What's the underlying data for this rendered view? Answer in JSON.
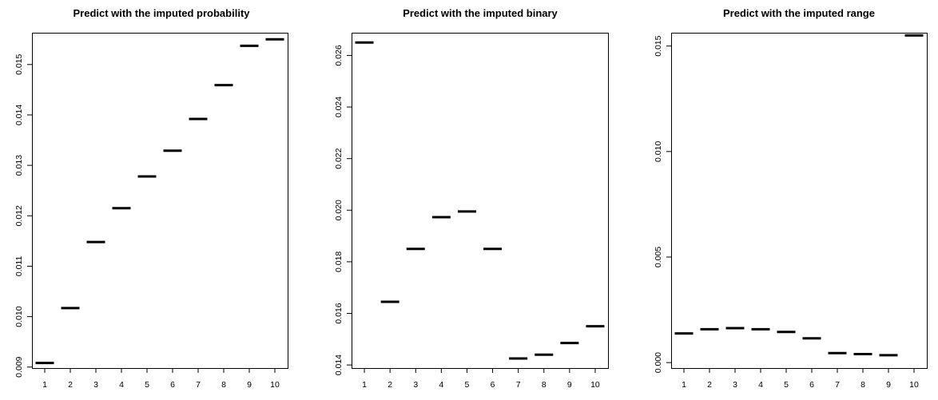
{
  "chart_data": [
    {
      "type": "dot",
      "title": "Predict with the imputed probability",
      "xlabel": "",
      "ylabel": "",
      "categories": [
        "1",
        "2",
        "3",
        "4",
        "5",
        "6",
        "7",
        "8",
        "9",
        "10"
      ],
      "values": [
        0.00908,
        0.01017,
        0.01148,
        0.01215,
        0.01278,
        0.01329,
        0.01392,
        0.01459,
        0.01537,
        0.0155
      ],
      "ylim": [
        0.00898,
        0.01563
      ],
      "yticks": [
        0.009,
        0.01,
        0.011,
        0.012,
        0.013,
        0.014,
        0.015
      ],
      "yticklabels": [
        "0.009",
        "0.010",
        "0.011",
        "0.012",
        "0.013",
        "0.014",
        "0.015"
      ],
      "grid": false,
      "legend": "none"
    },
    {
      "type": "dot",
      "title": "Predict with the imputed binary",
      "xlabel": "",
      "ylabel": "",
      "categories": [
        "1",
        "2",
        "3",
        "4",
        "5",
        "6",
        "7",
        "8",
        "9",
        "10"
      ],
      "values": [
        0.0265,
        0.01645,
        0.0185,
        0.01973,
        0.01995,
        0.0185,
        0.01425,
        0.0144,
        0.01485,
        0.0155
      ],
      "ylim": [
        0.01388,
        0.02688
      ],
      "yticks": [
        0.014,
        0.016,
        0.018,
        0.02,
        0.022,
        0.024,
        0.026
      ],
      "yticklabels": [
        "0.014",
        "0.016",
        "0.018",
        "0.020",
        "0.022",
        "0.024",
        "0.026"
      ],
      "grid": false,
      "legend": "none"
    },
    {
      "type": "dot",
      "title": "Predict with the imputed range",
      "xlabel": "",
      "ylabel": "",
      "categories": [
        "1",
        "2",
        "3",
        "4",
        "5",
        "6",
        "7",
        "8",
        "9",
        "10"
      ],
      "values": [
        0.00138,
        0.00158,
        0.00163,
        0.00158,
        0.00145,
        0.00115,
        0.00045,
        0.0004,
        0.00035,
        0.0155
      ],
      "ylim": [
        -0.00026,
        0.01563
      ],
      "yticks": [
        0.0,
        0.005,
        0.01,
        0.015
      ],
      "yticklabels": [
        "0.000",
        "0.005",
        "0.010",
        "0.015"
      ],
      "grid": false,
      "legend": "none"
    }
  ]
}
